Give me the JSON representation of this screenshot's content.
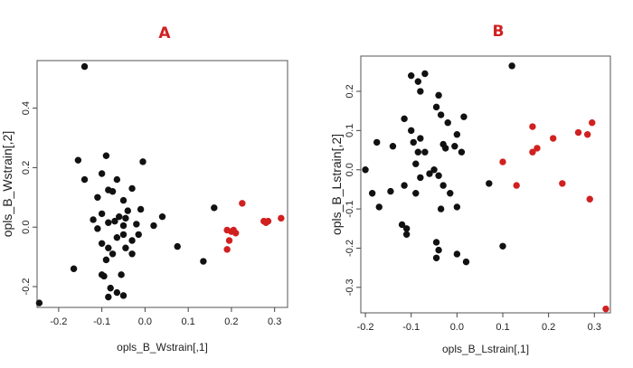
{
  "colors": {
    "group1": "#111111",
    "group2": "#d12020",
    "panel_label": "#d12020",
    "frame": "#555555"
  },
  "chart_data": [
    {
      "type": "scatter",
      "panel_label": "A",
      "xlabel": "opls_B_Wstrain[,1]",
      "ylabel": "opls_B_Wstrain[,2]",
      "xlim": [
        -0.25,
        0.33
      ],
      "ylim": [
        -0.27,
        0.56
      ],
      "xticks": [
        -0.2,
        -0.1,
        0.0,
        0.1,
        0.2,
        0.3
      ],
      "xtick_labels": [
        "-0.2",
        "-0.1",
        "0.0",
        "0.1",
        "0.2",
        "0.3"
      ],
      "yticks": [
        -0.2,
        0.0,
        0.2,
        0.4
      ],
      "ytick_labels": [
        "-0.2",
        "0.0",
        "0.2",
        "0.4"
      ],
      "grid": false,
      "series": [
        {
          "color": "#111111",
          "points": [
            [
              -0.14,
              0.54
            ],
            [
              -0.245,
              -0.255
            ],
            [
              -0.165,
              -0.14
            ],
            [
              -0.155,
              0.225
            ],
            [
              -0.14,
              0.16
            ],
            [
              -0.11,
              0.1
            ],
            [
              -0.09,
              0.24
            ],
            [
              -0.1,
              0.18
            ],
            [
              -0.085,
              0.125
            ],
            [
              -0.075,
              0.12
            ],
            [
              -0.065,
              0.16
            ],
            [
              -0.005,
              0.22
            ],
            [
              -0.05,
              0.09
            ],
            [
              -0.03,
              0.13
            ],
            [
              -0.01,
              0.06
            ],
            [
              -0.04,
              0.055
            ],
            [
              -0.06,
              0.035
            ],
            [
              -0.045,
              0.03
            ],
            [
              -0.02,
              0.01
            ],
            [
              0.04,
              0.035
            ],
            [
              -0.12,
              0.025
            ],
            [
              -0.11,
              -0.005
            ],
            [
              -0.1,
              0.045
            ],
            [
              -0.085,
              0.015
            ],
            [
              -0.07,
              0.02
            ],
            [
              -0.05,
              0.005
            ],
            [
              -0.1,
              -0.055
            ],
            [
              -0.085,
              -0.07
            ],
            [
              -0.065,
              -0.035
            ],
            [
              -0.05,
              -0.025
            ],
            [
              -0.03,
              -0.045
            ],
            [
              -0.015,
              -0.025
            ],
            [
              0.02,
              0.005
            ],
            [
              -0.09,
              -0.11
            ],
            [
              -0.075,
              -0.09
            ],
            [
              -0.045,
              -0.07
            ],
            [
              -0.03,
              -0.09
            ],
            [
              -0.095,
              -0.165
            ],
            [
              -0.08,
              -0.205
            ],
            [
              -0.065,
              -0.22
            ],
            [
              -0.1,
              -0.16
            ],
            [
              -0.055,
              -0.16
            ],
            [
              -0.05,
              -0.23
            ],
            [
              -0.085,
              -0.235
            ],
            [
              0.075,
              -0.065
            ],
            [
              0.135,
              -0.115
            ],
            [
              0.16,
              0.065
            ]
          ]
        },
        {
          "color": "#d12020",
          "points": [
            [
              0.225,
              0.08
            ],
            [
              0.19,
              -0.01
            ],
            [
              0.2,
              -0.015
            ],
            [
              0.21,
              -0.02
            ],
            [
              0.205,
              -0.01
            ],
            [
              0.195,
              -0.045
            ],
            [
              0.19,
              -0.075
            ],
            [
              0.275,
              0.02
            ],
            [
              0.285,
              0.02
            ],
            [
              0.28,
              0.015
            ],
            [
              0.315,
              0.03
            ]
          ]
        }
      ]
    },
    {
      "type": "scatter",
      "panel_label": "B",
      "xlabel": "opls_B_Lstrain[,1]",
      "ylabel": "opls_B_Lstrain[,2]",
      "xlim": [
        -0.21,
        0.335
      ],
      "ylim": [
        -0.365,
        0.29
      ],
      "xticks": [
        -0.2,
        -0.1,
        0.0,
        0.1,
        0.2,
        0.3
      ],
      "xtick_labels": [
        "-0.2",
        "-0.1",
        "0.0",
        "0.1",
        "0.2",
        "0.3"
      ],
      "yticks": [
        -0.3,
        -0.2,
        -0.1,
        0.0,
        0.1,
        0.2
      ],
      "ytick_labels": [
        "-0.3",
        "-0.2",
        "-0.1",
        "0.0",
        "0.1",
        "0.2"
      ],
      "grid": false,
      "series": [
        {
          "color": "#111111",
          "points": [
            [
              -0.2,
              0.0
            ],
            [
              -0.185,
              -0.06
            ],
            [
              -0.175,
              0.07
            ],
            [
              -0.17,
              -0.095
            ],
            [
              -0.14,
              0.06
            ],
            [
              -0.145,
              -0.055
            ],
            [
              -0.12,
              -0.14
            ],
            [
              -0.11,
              -0.15
            ],
            [
              -0.115,
              -0.04
            ],
            [
              -0.11,
              -0.165
            ],
            [
              -0.09,
              -0.06
            ],
            [
              -0.1,
              0.24
            ],
            [
              -0.085,
              0.225
            ],
            [
              -0.08,
              0.2
            ],
            [
              -0.07,
              0.245
            ],
            [
              -0.115,
              0.13
            ],
            [
              -0.1,
              0.1
            ],
            [
              -0.095,
              0.07
            ],
            [
              -0.08,
              0.08
            ],
            [
              -0.085,
              0.045
            ],
            [
              -0.09,
              0.015
            ],
            [
              -0.07,
              0.045
            ],
            [
              -0.08,
              -0.02
            ],
            [
              -0.06,
              -0.01
            ],
            [
              -0.045,
              0.16
            ],
            [
              -0.04,
              0.19
            ],
            [
              -0.035,
              0.14
            ],
            [
              -0.03,
              0.065
            ],
            [
              -0.025,
              0.055
            ],
            [
              -0.05,
              0.0
            ],
            [
              -0.04,
              -0.015
            ],
            [
              -0.03,
              -0.04
            ],
            [
              -0.035,
              -0.1
            ],
            [
              -0.02,
              0.12
            ],
            [
              0.0,
              0.09
            ],
            [
              0.01,
              0.045
            ],
            [
              0.015,
              0.135
            ],
            [
              -0.005,
              0.06
            ],
            [
              -0.045,
              -0.185
            ],
            [
              -0.04,
              -0.205
            ],
            [
              -0.045,
              -0.225
            ],
            [
              0.0,
              -0.215
            ],
            [
              0.02,
              -0.235
            ],
            [
              0.0,
              -0.095
            ],
            [
              -0.015,
              -0.06
            ],
            [
              0.12,
              0.265
            ],
            [
              0.07,
              -0.035
            ],
            [
              0.1,
              -0.195
            ]
          ]
        },
        {
          "color": "#d12020",
          "points": [
            [
              0.1,
              0.02
            ],
            [
              0.165,
              0.11
            ],
            [
              0.175,
              0.055
            ],
            [
              0.165,
              0.045
            ],
            [
              0.13,
              -0.04
            ],
            [
              0.21,
              0.08
            ],
            [
              0.265,
              0.095
            ],
            [
              0.285,
              0.09
            ],
            [
              0.295,
              0.12
            ],
            [
              0.23,
              -0.035
            ],
            [
              0.29,
              -0.075
            ],
            [
              0.325,
              -0.355
            ]
          ]
        }
      ]
    }
  ]
}
